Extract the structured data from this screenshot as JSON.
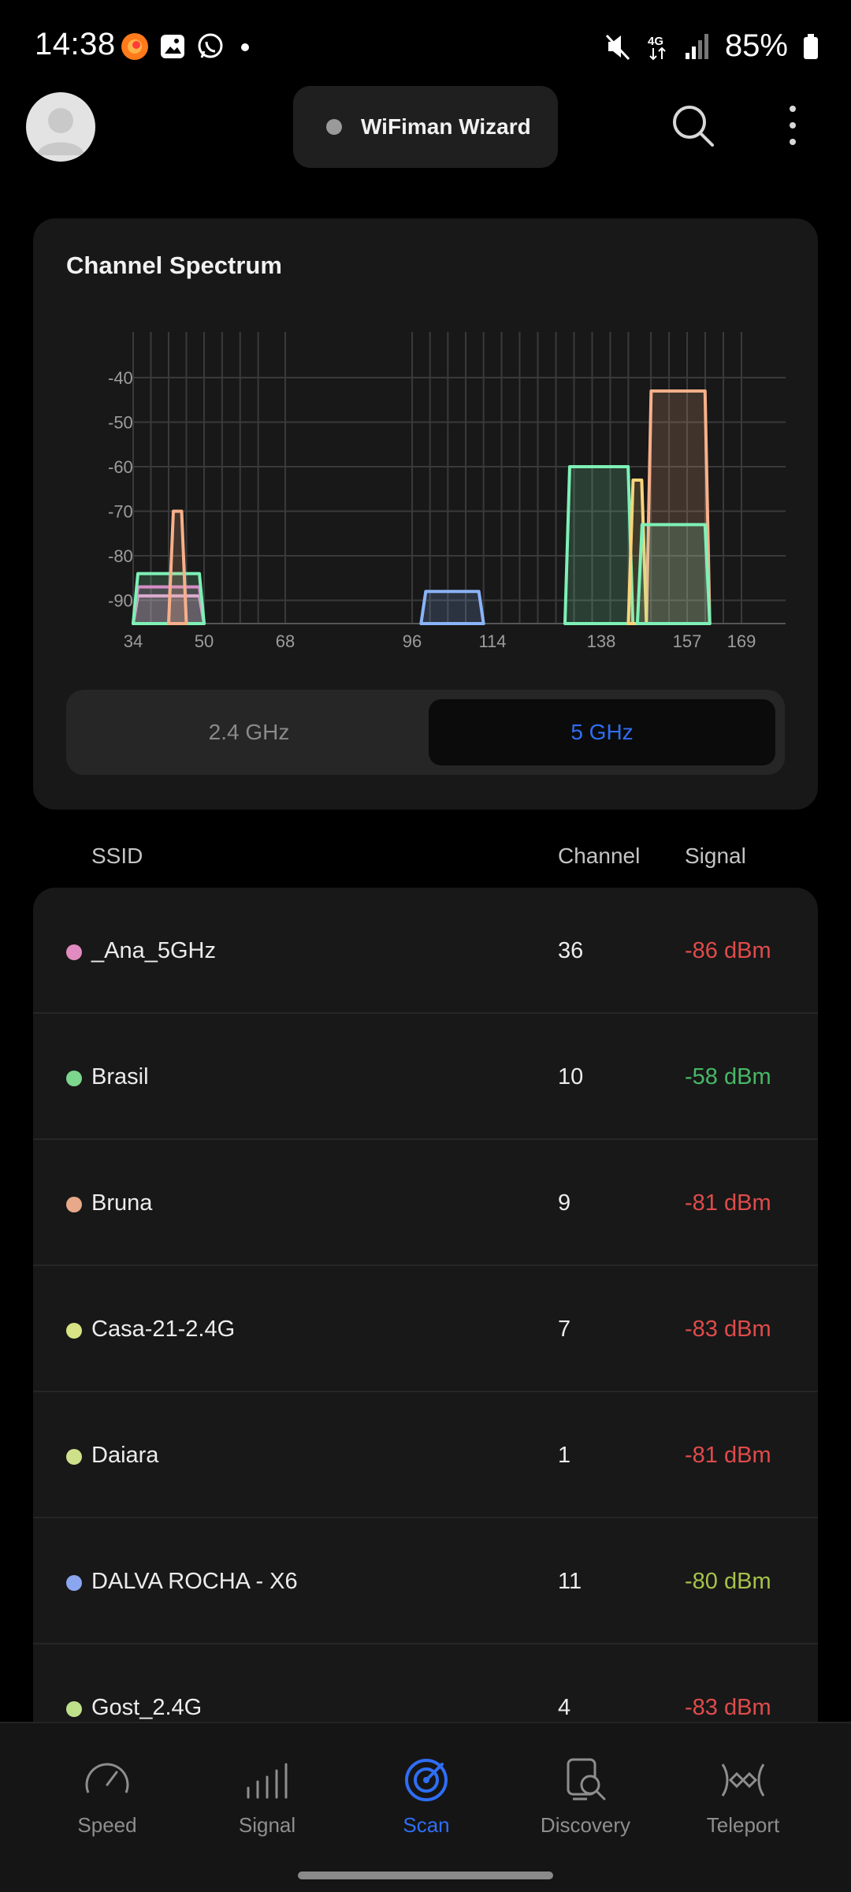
{
  "status_bar": {
    "time": "14:38",
    "battery": "85%",
    "network": "4G",
    "notification_icons": [
      "firefox-icon",
      "gallery-icon",
      "whatsapp-icon",
      "dot-icon"
    ],
    "system_icons": [
      "mute-icon",
      "4g-data-icon",
      "signal-bars-icon",
      "battery-icon"
    ]
  },
  "app_bar": {
    "wizard_label": "WiFiman Wizard",
    "status_dot_color": "#9a9a9a"
  },
  "spectrum": {
    "title": "Channel Spectrum",
    "band_options": [
      "2.4 GHz",
      "5 GHz"
    ],
    "selected_band": "5 GHz",
    "accent_color": "#2f6ef5"
  },
  "chart_data": {
    "type": "area",
    "title": "Channel Spectrum",
    "xlabel": "",
    "ylabel": "",
    "x_ticks": [
      34,
      50,
      68,
      96,
      114,
      138,
      157,
      169
    ],
    "y_ticks": [
      -40,
      -50,
      -60,
      -70,
      -80,
      -90
    ],
    "ylim": [
      -95,
      -30
    ],
    "xlim": [
      34,
      169
    ],
    "grid": true,
    "series": [
      {
        "color": "#f2a6d8",
        "channel_range": [
          34,
          50
        ],
        "level": -89
      },
      {
        "color": "#e978c8",
        "channel_range": [
          34,
          50
        ],
        "level": -87
      },
      {
        "color": "#7ef0b6",
        "channel_range": [
          34,
          50
        ],
        "level": -84
      },
      {
        "color": "#f7b08a",
        "channel_range": [
          42,
          46
        ],
        "level": -70
      },
      {
        "color": "#8ab4f8",
        "channel_range": [
          98,
          112
        ],
        "level": -88
      },
      {
        "color": "#7ef0b6",
        "channel_range": [
          130,
          145
        ],
        "level": -60
      },
      {
        "color": "#f7b08a",
        "channel_range": [
          148,
          162
        ],
        "level": -43
      },
      {
        "color": "#f8d47a",
        "channel_range": [
          144,
          148
        ],
        "level": -63
      },
      {
        "color": "#7ef0b6",
        "channel_range": [
          146,
          162
        ],
        "level": -73
      }
    ]
  },
  "list": {
    "headers": {
      "ssid": "SSID",
      "channel": "Channel",
      "signal": "Signal"
    },
    "rows": [
      {
        "ssid": "_Ana_5GHz",
        "channel": "36",
        "signal": "-86 dBm",
        "dot_color": "#e18bc0",
        "signal_color": "#e04b4b"
      },
      {
        "ssid": "Brasil",
        "channel": "10",
        "signal": "-58 dBm",
        "dot_color": "#7dd68d",
        "signal_color": "#47b866"
      },
      {
        "ssid": "Bruna",
        "channel": "9",
        "signal": "-81 dBm",
        "dot_color": "#e7a98a",
        "signal_color": "#e04b4b"
      },
      {
        "ssid": "Casa-21-2.4G",
        "channel": "7",
        "signal": "-83 dBm",
        "dot_color": "#d7e384",
        "signal_color": "#e04b4b"
      },
      {
        "ssid": "Daiara",
        "channel": "1",
        "signal": "-81 dBm",
        "dot_color": "#cfe08a",
        "signal_color": "#e04b4b"
      },
      {
        "ssid": "DALVA ROCHA - X6",
        "channel": "11",
        "signal": "-80 dBm",
        "dot_color": "#8aa6ee",
        "signal_color": "#a6c24a"
      },
      {
        "ssid": "Gost_2.4G",
        "channel": "4",
        "signal": "-83 dBm",
        "dot_color": "#bfe08a",
        "signal_color": "#e04b4b"
      }
    ]
  },
  "bottom_nav": {
    "items": [
      {
        "label": "Speed",
        "icon": "speedometer-icon"
      },
      {
        "label": "Signal",
        "icon": "signal-bars-icon"
      },
      {
        "label": "Scan",
        "icon": "radar-icon"
      },
      {
        "label": "Discovery",
        "icon": "device-search-icon"
      },
      {
        "label": "Teleport",
        "icon": "teleport-icon"
      }
    ],
    "active": "Scan"
  }
}
